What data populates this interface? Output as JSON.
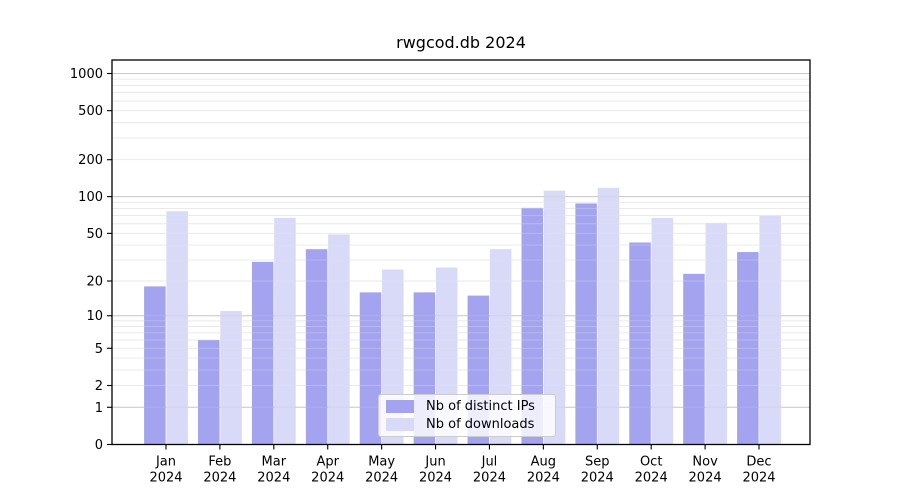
{
  "title": "rwgcod.db 2024",
  "chart_data": {
    "type": "bar",
    "title": "rwgcod.db 2024",
    "categories": [
      "Jan",
      "Feb",
      "Mar",
      "Apr",
      "May",
      "Jun",
      "Jul",
      "Aug",
      "Sep",
      "Oct",
      "Nov",
      "Dec"
    ],
    "year_label": "2024",
    "series": [
      {
        "name": "Nb of distinct IPs",
        "color": "#a3a3f0",
        "values": [
          18,
          6,
          29,
          37,
          16,
          16,
          15,
          81,
          88,
          42,
          23,
          35
        ]
      },
      {
        "name": "Nb of downloads",
        "color": "#d9d9f8",
        "values": [
          76,
          11,
          67,
          49,
          25,
          26,
          37,
          112,
          118,
          67,
          61,
          70
        ]
      }
    ],
    "yscale": "log1p",
    "yticks": [
      0,
      1,
      2,
      5,
      10,
      20,
      50,
      100,
      200,
      500,
      1000
    ],
    "ylim": [
      0,
      1286
    ],
    "xlabel": "",
    "ylabel": "",
    "grid": {
      "on": true,
      "major_color": "#c9c9c9",
      "minor_color": "#e9e9e9"
    },
    "legend_position": "bottom-center",
    "frame_color": "#000000",
    "text_color": "#000000"
  }
}
